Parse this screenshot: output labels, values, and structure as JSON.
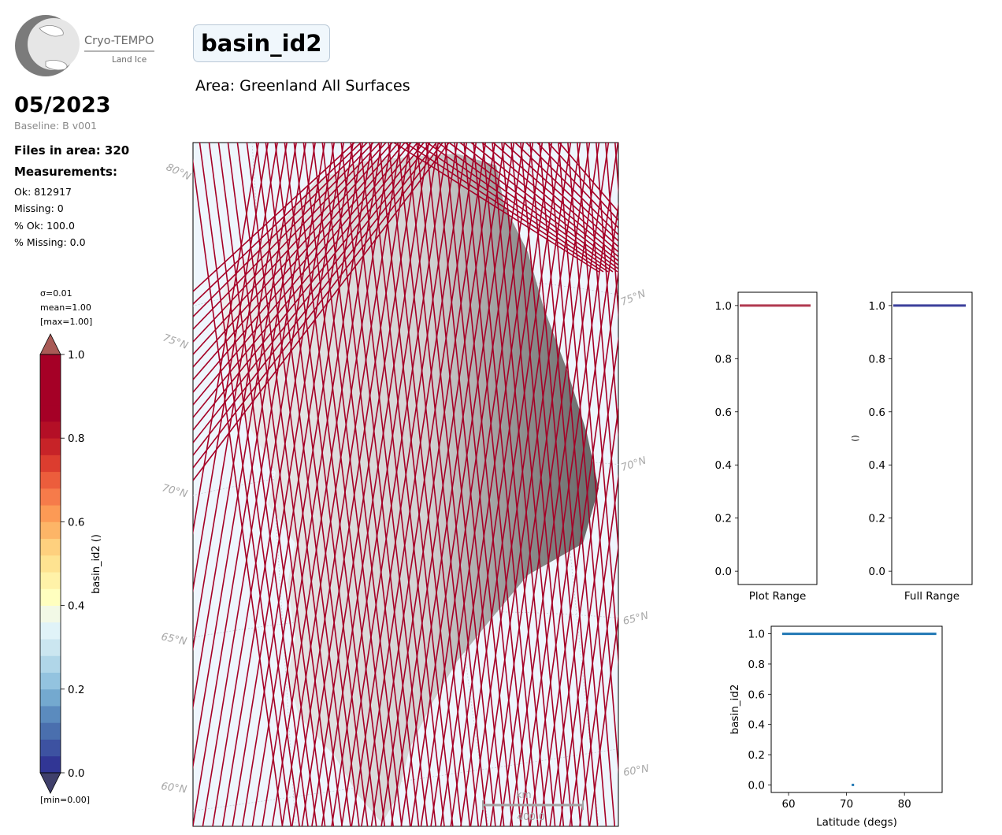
{
  "logo": {
    "name": "Cryo-TEMPO",
    "sub": "Land Ice"
  },
  "title": "basin_id2",
  "area": "Area: Greenland All Surfaces",
  "date": "05/2023",
  "baseline": "Baseline: B v001",
  "files": "Files in area: 320",
  "measurements_heading": "Measurements:",
  "stats": {
    "ok": "Ok: 812917",
    "missing": "Missing: 0",
    "pct_ok": "% Ok: 100.0",
    "pct_missing": "% Missing: 0.0"
  },
  "colorbar": {
    "sigma": "σ=0.01",
    "mean": "mean=1.00",
    "max": "[max=1.00]",
    "min": "[min=0.00]",
    "label": "basin_id2 ()",
    "ticks": [
      "0.0",
      "0.2",
      "0.4",
      "0.6",
      "0.8",
      "1.0"
    ],
    "tick_values": [
      0,
      0.2,
      0.4,
      0.6,
      0.8,
      1.0
    ],
    "range": [
      0,
      1
    ],
    "levels": 25,
    "colors": [
      "#313695",
      "#3d52a1",
      "#4a6fae",
      "#5b8bbe",
      "#74a9cf",
      "#93c3df",
      "#b0d6e8",
      "#cbe6f0",
      "#e0f3f8",
      "#f2f9e6",
      "#ffffbf",
      "#fff2a8",
      "#fee391",
      "#fed07e",
      "#fdb567",
      "#fc9a55",
      "#f67b4a",
      "#ec5d3c",
      "#dc3d2f",
      "#c72328",
      "#b40f26",
      "#a50026",
      "#a50026",
      "#a50026",
      "#a50026"
    ]
  },
  "map": {
    "lat_labels_left": [
      "80°N",
      "75°N",
      "70°N",
      "65°N",
      "60°N"
    ],
    "lat_labels_right": [
      "75°N",
      "70°N",
      "65°N",
      "60°N"
    ],
    "scalebar_unit": "km",
    "scalebar_value": "400.0",
    "track_color": "#a50026"
  },
  "chart_data": [
    {
      "type": "bar",
      "title": "",
      "xlabel": "Plot Range",
      "ylabel": "",
      "ylim": [
        -0.05,
        1.05
      ],
      "yticks": [
        "0.0",
        "0.2",
        "0.4",
        "0.6",
        "0.8",
        "1.0"
      ],
      "ytick_values": [
        0,
        0.2,
        0.4,
        0.6,
        0.8,
        1.0
      ],
      "values": [
        1.0
      ],
      "color": "#b0394f"
    },
    {
      "type": "bar",
      "title": "",
      "xlabel": "Full Range",
      "ylabel": "()",
      "ylim": [
        -0.05,
        1.05
      ],
      "yticks": [
        "0.0",
        "0.2",
        "0.4",
        "0.6",
        "0.8",
        "1.0"
      ],
      "ytick_values": [
        0,
        0.2,
        0.4,
        0.6,
        0.8,
        1.0
      ],
      "values": [
        1.0
      ],
      "color": "#3b3f9b"
    },
    {
      "type": "line",
      "title": "",
      "xlabel": "Latitude (degs)",
      "ylabel": "basin_id2",
      "xlim": [
        57,
        86.5
      ],
      "ylim": [
        -0.05,
        1.05
      ],
      "xticks": [
        "60",
        "70",
        "80"
      ],
      "xtick_values": [
        60,
        70,
        80
      ],
      "yticks": [
        "0.0",
        "0.2",
        "0.4",
        "0.6",
        "0.8",
        "1.0"
      ],
      "ytick_values": [
        0,
        0.2,
        0.4,
        0.6,
        0.8,
        1.0
      ],
      "series": [
        {
          "x": [
            58.9,
            85.5
          ],
          "y": [
            1.0,
            1.0
          ]
        },
        {
          "x": [
            71.1,
            71.1
          ],
          "y": [
            0.0,
            0.0
          ]
        }
      ],
      "color": "#1f77b4"
    }
  ]
}
